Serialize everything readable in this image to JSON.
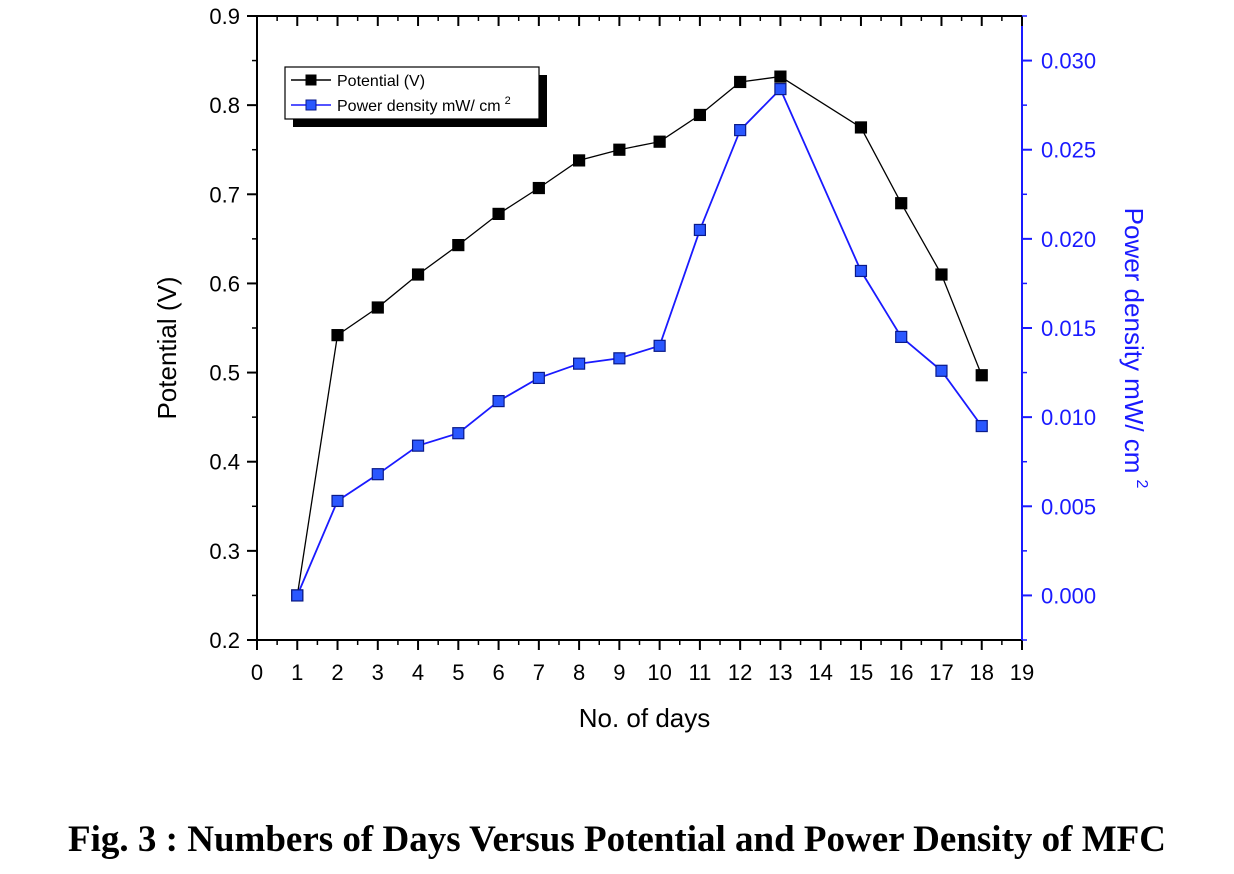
{
  "caption": "Fig. 3 : Numbers of Days Versus Potential and Power Density of MFC",
  "chart_data": {
    "type": "line",
    "xlabel": "No. of days",
    "ylabel_left": "Potential (V)",
    "ylabel_right": "Power density mW/ cm",
    "ylabel_right_superscript": "2",
    "x_ticks": [
      "0",
      "1",
      "2",
      "3",
      "4",
      "5",
      "6",
      "7",
      "8",
      "9",
      "10",
      "11",
      "12",
      "13",
      "14",
      "15",
      "16",
      "17",
      "18",
      "19"
    ],
    "xlim": [
      0,
      19
    ],
    "ylim_left": [
      0.2,
      0.9
    ],
    "yticks_left": [
      "0.2",
      "0.3",
      "0.4",
      "0.5",
      "0.6",
      "0.7",
      "0.8",
      "0.9"
    ],
    "ylim_right": [
      -0.0025,
      0.0325
    ],
    "yticks_right": [
      "0.000",
      "0.005",
      "0.010",
      "0.015",
      "0.020",
      "0.025",
      "0.030"
    ],
    "grid": false,
    "legend_position": "top-left",
    "series": [
      {
        "name": "Potential (V)",
        "axis": "left",
        "color": "#000000",
        "marker_fill": "#000000",
        "marker": "square",
        "x": [
          1,
          2,
          3,
          4,
          5,
          6,
          7,
          8,
          9,
          10,
          11,
          12,
          13,
          15,
          16,
          17,
          18
        ],
        "values": [
          0.25,
          0.542,
          0.573,
          0.61,
          0.643,
          0.678,
          0.707,
          0.738,
          0.75,
          0.759,
          0.789,
          0.826,
          0.832,
          0.775,
          0.69,
          0.61,
          0.497
        ]
      },
      {
        "name": "Power density mW/ cm",
        "name_superscript": "2",
        "axis": "right",
        "color": "#1a1aff",
        "marker_fill": "#2a57ff",
        "marker": "square",
        "x": [
          1,
          2,
          3,
          4,
          5,
          6,
          7,
          8,
          9,
          10,
          11,
          12,
          13,
          15,
          16,
          17,
          18
        ],
        "values": [
          0.0,
          0.0053,
          0.0068,
          0.0084,
          0.0091,
          0.0109,
          0.0122,
          0.013,
          0.0133,
          0.014,
          0.0205,
          0.0261,
          0.0284,
          0.0182,
          0.0145,
          0.0126,
          0.0095
        ]
      }
    ]
  }
}
